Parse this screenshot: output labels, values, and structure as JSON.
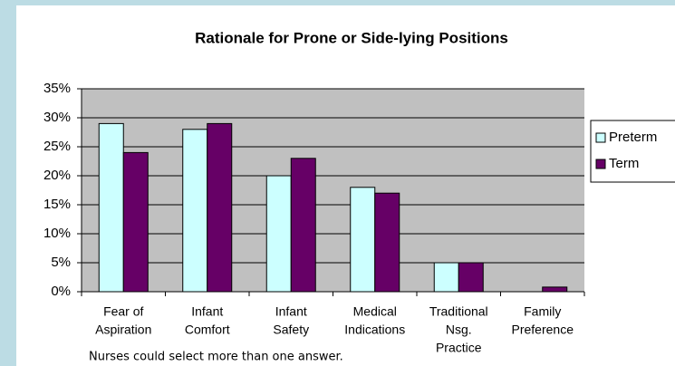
{
  "chart_data": {
    "type": "bar",
    "title": "Rationale for Prone or Side-lying Positions",
    "categories": [
      [
        "Fear of",
        "Aspiration"
      ],
      [
        "Infant",
        "Comfort"
      ],
      [
        "Infant",
        "Safety"
      ],
      [
        "Medical",
        "Indications"
      ],
      [
        "Traditional",
        "Nsg.",
        "Practice"
      ],
      [
        "Family",
        "Preference"
      ]
    ],
    "series": [
      {
        "name": "Preterm",
        "color": "#ccffff",
        "values": [
          29,
          28,
          20,
          18,
          5,
          0
        ]
      },
      {
        "name": "Term",
        "color": "#660066",
        "values": [
          24,
          29,
          23,
          17,
          5,
          0.8
        ]
      }
    ],
    "ylim": [
      0,
      35
    ],
    "yticks": [
      {
        "value": 0,
        "label": "0%"
      },
      {
        "value": 5,
        "label": "5%"
      },
      {
        "value": 10,
        "label": "10%"
      },
      {
        "value": 15,
        "label": "15%"
      },
      {
        "value": 20,
        "label": "20%"
      },
      {
        "value": 25,
        "label": "25%"
      },
      {
        "value": 30,
        "label": "30%"
      },
      {
        "value": 35,
        "label": "35%"
      }
    ],
    "grid": true,
    "legend": "right",
    "note": "Nurses could select more than one answer."
  }
}
